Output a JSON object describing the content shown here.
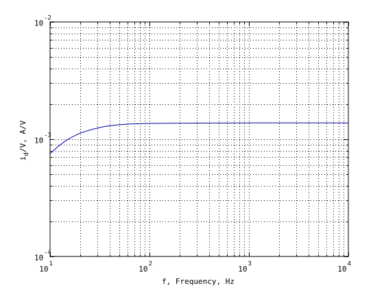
{
  "chart_data": {
    "type": "line",
    "title": "",
    "xlabel": "f, Frequency, Hz",
    "ylabel": "i_d/V, A/V",
    "ylabel_main": "i",
    "ylabel_sub": "d",
    "ylabel_rest": "/V, A/V",
    "xscale": "log",
    "yscale": "log",
    "xlim": [
      10,
      10000
    ],
    "ylim": [
      0.0001,
      0.01
    ],
    "grid": true,
    "line_color": "#0000aa",
    "x_ticks": [
      {
        "value": 10,
        "base": "10",
        "exp": "1"
      },
      {
        "value": 100,
        "base": "10",
        "exp": "2"
      },
      {
        "value": 1000,
        "base": "10",
        "exp": "3"
      },
      {
        "value": 10000,
        "base": "10",
        "exp": "4"
      }
    ],
    "y_ticks": [
      {
        "value": 0.0001,
        "base": "10",
        "exp": "-4"
      },
      {
        "value": 0.001,
        "base": "10",
        "exp": "-3"
      },
      {
        "value": 0.01,
        "base": "10",
        "exp": "-2"
      }
    ],
    "series": [
      {
        "x": [
          10,
          12,
          14,
          16,
          18,
          20,
          25,
          30,
          35,
          40,
          50,
          60,
          70,
          80,
          100,
          150,
          200,
          300,
          500,
          1000,
          2000,
          5000,
          10000
        ],
        "y": [
          0.00075,
          0.000865,
          0.000955,
          0.001025,
          0.00108,
          0.001125,
          0.001195,
          0.001245,
          0.00128,
          0.001305,
          0.00133,
          0.001345,
          0.001352,
          0.001357,
          0.001363,
          0.001368,
          0.00137,
          0.001372,
          0.001374,
          0.001376,
          0.001377,
          0.001378,
          0.001378
        ]
      }
    ]
  }
}
